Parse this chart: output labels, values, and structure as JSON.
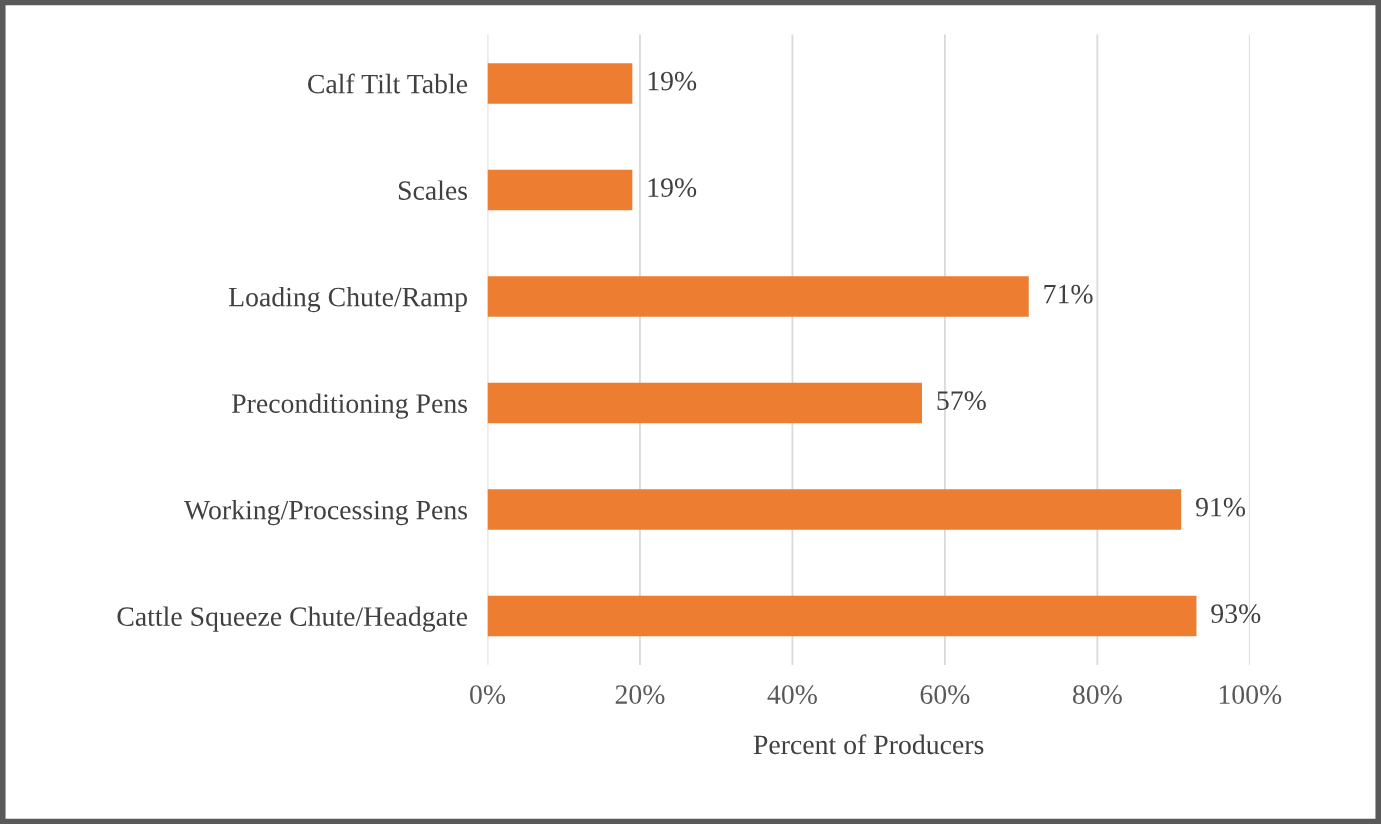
{
  "chart_data": {
    "type": "bar",
    "orientation": "horizontal",
    "xlabel": "Percent of Producers",
    "categories": [
      "Calf Tilt Table",
      "Scales",
      "Loading Chute/Ramp",
      "Preconditioning Pens",
      "Working/Processing Pens",
      "Cattle Squeeze Chute/Headgate"
    ],
    "values": [
      19,
      19,
      71,
      57,
      91,
      93
    ],
    "value_labels": [
      "19%",
      "19%",
      "71%",
      "57%",
      "91%",
      "93%"
    ],
    "color": "#ed7d31",
    "xlim": [
      0,
      100
    ],
    "xticks": [
      {
        "value": 0,
        "label": "0%"
      },
      {
        "value": 20,
        "label": "20%"
      },
      {
        "value": 40,
        "label": "40%"
      },
      {
        "value": 60,
        "label": "60%"
      },
      {
        "value": 80,
        "label": "80%"
      },
      {
        "value": 100,
        "label": "100%"
      }
    ],
    "grid": "x"
  }
}
